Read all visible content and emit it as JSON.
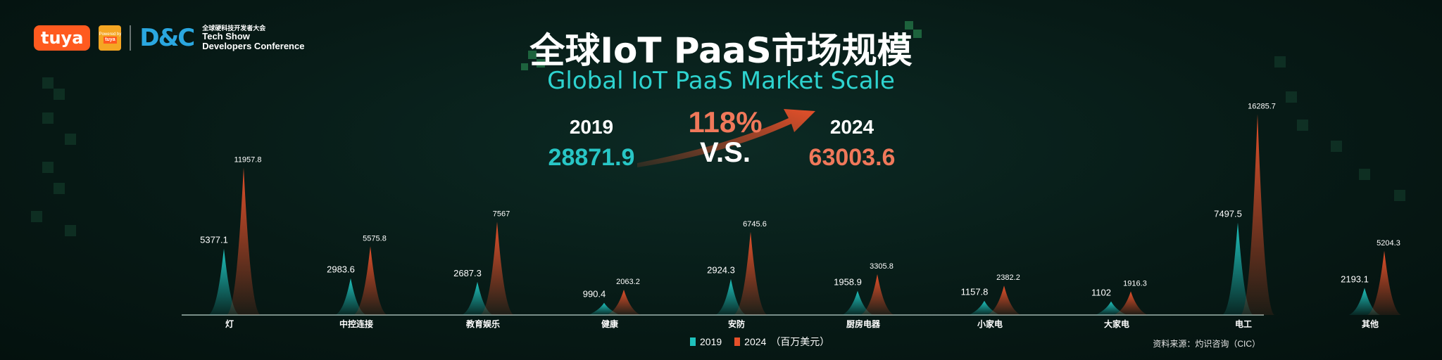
{
  "header": {
    "brand_logo": "tuya",
    "powered_badge": {
      "line1": "Powered by",
      "brand": "tuya"
    },
    "conference_mark": "D&C",
    "conference_cn": "全球硬科技开发者大会",
    "conference_line1": "Tech Show",
    "conference_line2": "Developers Conference"
  },
  "title_cn": "全球IoT PaaS市场规模",
  "title_en": "Global IoT PaaS Market Scale",
  "comparison": {
    "year_from": "2019",
    "total_from": "28871.9",
    "growth": "118%",
    "vs": "V.S.",
    "year_to": "2024",
    "total_to": "63003.6"
  },
  "colors": {
    "teal": "#1fc2bd",
    "orange": "#e5502a",
    "bg": "#071a16"
  },
  "chart_data": {
    "type": "area",
    "categories": [
      "灯",
      "中控连接",
      "教育娱乐",
      "健康",
      "安防",
      "厨房电器",
      "小家电",
      "大家电",
      "电工",
      "其他"
    ],
    "series": [
      {
        "name": "2019",
        "values": [
          5377.1,
          2983.6,
          2687.3,
          990.4,
          2924.3,
          1958.9,
          1157.8,
          1102,
          7497.5,
          2193.1
        ]
      },
      {
        "name": "2024",
        "values": [
          11957.8,
          5575.8,
          7567,
          2063.2,
          6745.6,
          3305.8,
          2382.2,
          1916.3,
          16285.7,
          5204.3
        ]
      }
    ],
    "legend": [
      "2019",
      "2024"
    ],
    "legend_unit": "（百万美元）",
    "ylim": [
      0,
      17000
    ],
    "grid": false,
    "legend_position": "bottom"
  },
  "footer": {
    "source": "资料来源：灼识咨询（CIC）"
  }
}
